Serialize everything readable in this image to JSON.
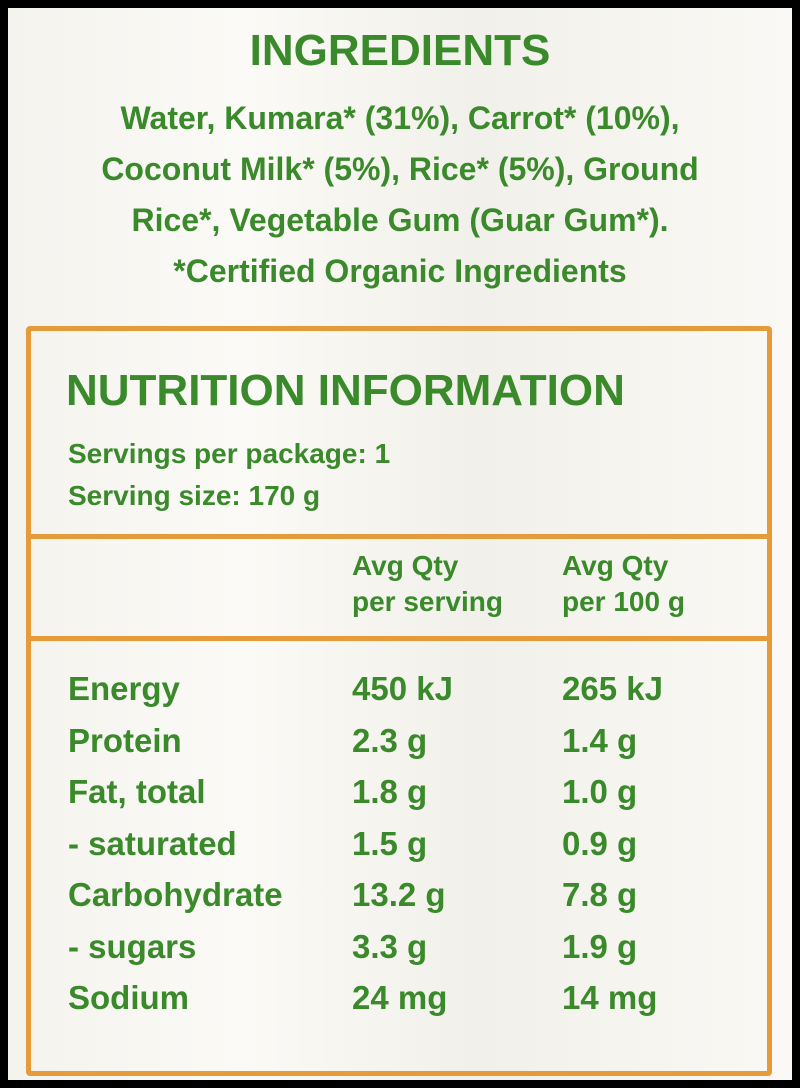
{
  "ingredients": {
    "title": "INGREDIENTS",
    "lines": [
      "Water, Kumara* (31%), Carrot* (10%),",
      "Coconut Milk* (5%), Rice* (5%), Ground",
      "Rice*, Vegetable Gum (Guar Gum*).",
      "*Certified Organic Ingredients"
    ]
  },
  "nutrition": {
    "title": "NUTRITION INFORMATION",
    "servings_per_package": "Servings per package: 1",
    "serving_size": "Serving size: 170 g",
    "columns": [
      {
        "line1": "Avg Qty",
        "line2": "per serving"
      },
      {
        "line1": "Avg Qty",
        "line2": "per 100 g"
      }
    ],
    "rows": [
      [
        "Energy",
        "450 kJ",
        "265 kJ"
      ],
      [
        "Protein",
        "2.3 g",
        "1.4 g"
      ],
      [
        "Fat, total",
        "1.8 g",
        "1.0 g"
      ],
      [
        "- saturated",
        "1.5 g",
        "0.9 g"
      ],
      [
        "Carbohydrate",
        "13.2 g",
        "7.8 g"
      ],
      [
        "- sugars",
        "3.3 g",
        "1.9 g"
      ],
      [
        "Sodium",
        "24 mg",
        "14 mg"
      ]
    ]
  }
}
